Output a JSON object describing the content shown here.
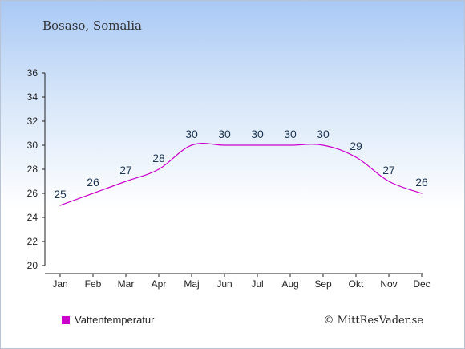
{
  "title": "Bosaso, Somalia",
  "legend": {
    "label": "Vattentemperatur",
    "color": "#cc00cc"
  },
  "credit": "© MittResVader.se",
  "chart_data": {
    "type": "line",
    "title": "Bosaso, Somalia",
    "categories": [
      "Jan",
      "Feb",
      "Mar",
      "Apr",
      "Maj",
      "Jun",
      "Jul",
      "Aug",
      "Sep",
      "Okt",
      "Nov",
      "Dec"
    ],
    "series": [
      {
        "name": "Vattentemperatur",
        "values": [
          25,
          26,
          27,
          28,
          30,
          30,
          30,
          30,
          30,
          29,
          27,
          26
        ],
        "color": "#cc00cc"
      }
    ],
    "ylim": [
      20,
      36
    ],
    "yticks": [
      20,
      22,
      24,
      26,
      28,
      30,
      32,
      34,
      36
    ],
    "grid": false,
    "legend_position": "bottom-left"
  }
}
